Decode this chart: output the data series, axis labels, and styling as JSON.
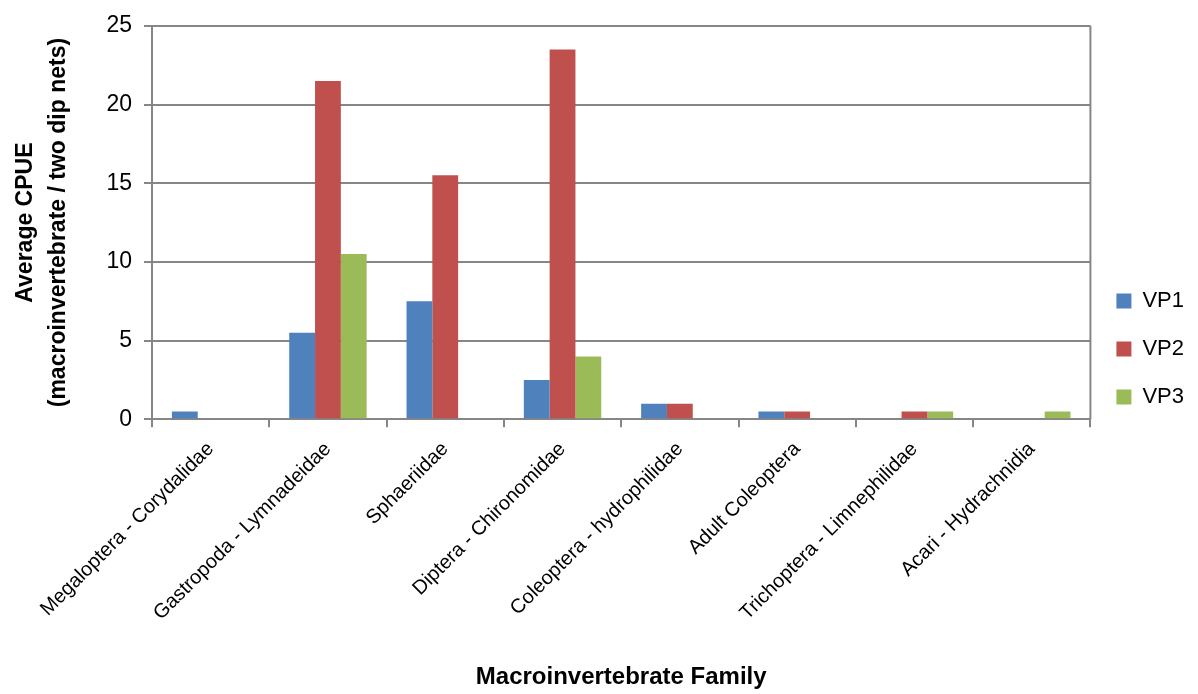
{
  "chart_data": {
    "type": "bar",
    "xlabel": "Macroinvertebrate Family",
    "ylabel": "Average CPUE\n(macroinvertebrate / two dip nets)",
    "categories": [
      "Megaloptera - Corydalidae",
      "Gastropoda - Lymnadeidae",
      "Sphaeriidae",
      "Diptera - Chironomidae",
      "Coleoptera - hydrophilidae",
      "Adult Coleoptera",
      "Trichoptera - Limnephilidae",
      "Acari - Hydrachnidia"
    ],
    "series": [
      {
        "name": "VP1",
        "color": "#4f81bd",
        "values": [
          0.5,
          5.5,
          7.5,
          2.5,
          1,
          0.5,
          0,
          0
        ]
      },
      {
        "name": "VP2",
        "color": "#c0504d",
        "values": [
          0,
          21.5,
          15.5,
          23.5,
          1,
          0.5,
          0.5,
          0
        ]
      },
      {
        "name": "VP3",
        "color": "#9bbb59",
        "values": [
          0,
          10.5,
          0,
          4,
          0,
          0,
          0.5,
          0.5
        ]
      }
    ],
    "ylim": [
      0,
      25
    ],
    "yticks": [
      0,
      5,
      10,
      15,
      20,
      25
    ],
    "grid": "y",
    "legend": "right"
  }
}
